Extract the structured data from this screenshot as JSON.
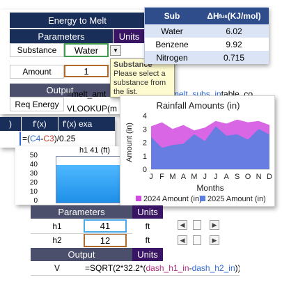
{
  "energy_panel": {
    "title": "Energy to Melt",
    "params_header": "Parameters",
    "units_header": "Units",
    "substance_label": "Substance",
    "substance_value": "Water",
    "amount_label": "Amount",
    "amount_value": "1",
    "output_header": "Output",
    "req_energy_label": "Req Energy",
    "formula_start": "=melt_amt",
    "formula_tail": "melt_subs_in",
    "formula_end": " table_co",
    "vlookup_text": "VLOOKUP(m"
  },
  "tooltip": {
    "title": "Substance",
    "body": "Please select a substance from the list."
  },
  "substance_table": {
    "col1": "Sub",
    "col2": "ΔH",
    "col2_sub": "fus",
    "col2_units": " (KJ/mol)",
    "rows": [
      {
        "name": "Water",
        "value": "6.02"
      },
      {
        "name": "Benzene",
        "value": "9.92"
      },
      {
        "name": "Nitrogen",
        "value": "0.715"
      }
    ]
  },
  "fx_panel": {
    "h1": ")",
    "h2": "f'(x)",
    "h3": "f'(x) exa",
    "formula_prefix": "=(",
    "ref1": "C4",
    "minus": "-",
    "ref2": "C3",
    "formula_suffix": ")/0.25"
  },
  "tank_panel": {
    "label": "h1  41  (ft)",
    "ticks": [
      "50",
      "40",
      "30",
      "20",
      "10",
      "0"
    ],
    "fill_fraction": 0.82
  },
  "chart_data": {
    "type": "area",
    "title": "Rainfall Amounts (in)",
    "xlabel": "Months",
    "ylabel": "Amount (in)",
    "categories": [
      "J",
      "F",
      "M",
      "A",
      "M",
      "J",
      "J",
      "A",
      "S",
      "O",
      "N",
      "D"
    ],
    "ylim": [
      0,
      4
    ],
    "yticks": [
      "0",
      "1",
      "2",
      "3",
      "4"
    ],
    "series": [
      {
        "name": "2024 Amount (in)",
        "color": "#d14be0",
        "values": [
          3.2,
          3.5,
          3.0,
          3.3,
          2.9,
          3.1,
          3.6,
          3.4,
          3.7,
          3.5,
          3.6,
          3.3
        ]
      },
      {
        "name": "2025 Amount (in)",
        "color": "#5b7fe0",
        "values": [
          2.4,
          1.6,
          1.8,
          1.9,
          2.6,
          2.1,
          3.2,
          2.5,
          2.6,
          2.2,
          3.0,
          2.6
        ]
      }
    ],
    "legend_placement": "bottom",
    "grid": false
  },
  "dash_panel": {
    "params_header": "Parameters",
    "units_header": "Units",
    "h1_label": "h1",
    "h1_value": "41",
    "h1_unit": "ft",
    "h2_label": "h2",
    "h2_value": "12",
    "h2_unit": "ft",
    "output_header": "Output",
    "output_units": "Units",
    "v_label": "V",
    "v_prefix": "=SQRT(2*32.2*(",
    "v_ref1": "dash_h1_in",
    "v_minus": "-",
    "v_ref2": "dash_h2_in",
    "v_suffix": "))"
  },
  "colors": {
    "accent_navy": "#1a2e5a",
    "accent_purple": "#3a1566",
    "table_header": "#2f4d8a"
  }
}
